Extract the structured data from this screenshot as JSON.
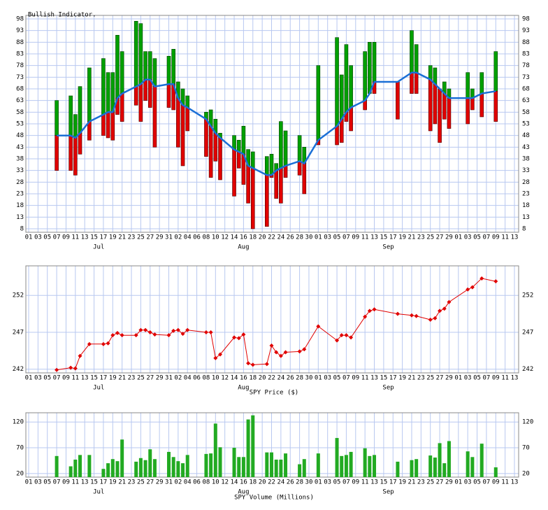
{
  "x_axis": {
    "ticks": [
      {
        "value": "Jul 01",
        "label": "01"
      },
      {
        "value": "Jul 03",
        "label": "03"
      },
      {
        "value": "Jul 05",
        "label": "05"
      },
      {
        "value": "Jul 07",
        "label": "07"
      },
      {
        "value": "Jul 09",
        "label": "09"
      },
      {
        "value": "Jul 11",
        "label": "11"
      },
      {
        "value": "Jul 13",
        "label": "13"
      },
      {
        "value": "Jul 15",
        "label": "15"
      },
      {
        "value": "Jul 17",
        "label": "17"
      },
      {
        "value": "Jul 19",
        "label": "19"
      },
      {
        "value": "Jul 21",
        "label": "21"
      },
      {
        "value": "Jul 23",
        "label": "23"
      },
      {
        "value": "Jul 25",
        "label": "25"
      },
      {
        "value": "Jul 27",
        "label": "27"
      },
      {
        "value": "Jul 29",
        "label": "29"
      },
      {
        "value": "Jul 31",
        "label": "31"
      },
      {
        "value": "Aug 02",
        "label": "02"
      },
      {
        "value": "Aug 04",
        "label": "04"
      },
      {
        "value": "Aug 06",
        "label": "06"
      },
      {
        "value": "Aug 08",
        "label": "08"
      },
      {
        "value": "Aug 10",
        "label": "10"
      },
      {
        "value": "Aug 12",
        "label": "12"
      },
      {
        "value": "Aug 14",
        "label": "14"
      },
      {
        "value": "Aug 16",
        "label": "16"
      },
      {
        "value": "Aug 18",
        "label": "18"
      },
      {
        "value": "Aug 20",
        "label": "20"
      },
      {
        "value": "Aug 22",
        "label": "22"
      },
      {
        "value": "Aug 24",
        "label": "24"
      },
      {
        "value": "Aug 26",
        "label": "26"
      },
      {
        "value": "Aug 28",
        "label": "28"
      },
      {
        "value": "Aug 30",
        "label": "30"
      },
      {
        "value": "Sep 01",
        "label": "01"
      },
      {
        "value": "Sep 03",
        "label": "03"
      },
      {
        "value": "Sep 05",
        "label": "05"
      },
      {
        "value": "Sep 07",
        "label": "07"
      },
      {
        "value": "Sep 09",
        "label": "09"
      },
      {
        "value": "Sep 11",
        "label": "11"
      },
      {
        "value": "Sep 13",
        "label": "13"
      },
      {
        "value": "Sep 15",
        "label": "15"
      },
      {
        "value": "Sep 17",
        "label": "17"
      },
      {
        "value": "Sep 19",
        "label": "19"
      },
      {
        "value": "Sep 21",
        "label": "21"
      },
      {
        "value": "Sep 23",
        "label": "23"
      },
      {
        "value": "Sep 25",
        "label": "25"
      },
      {
        "value": "Sep 27",
        "label": "27"
      },
      {
        "value": "Sep 29",
        "label": "29"
      },
      {
        "value": "Oct 01",
        "label": "01"
      },
      {
        "value": "Oct 03",
        "label": "03"
      },
      {
        "value": "Oct 05",
        "label": "05"
      },
      {
        "value": "Oct 07",
        "label": "07"
      },
      {
        "value": "Oct 09",
        "label": "09"
      },
      {
        "value": "Oct 11",
        "label": "11"
      },
      {
        "value": "Oct 13",
        "label": "13"
      }
    ],
    "months": [
      "Jul",
      "Aug",
      "Sep"
    ]
  },
  "chart_data": [
    {
      "type": "indicator",
      "title": "Bullish Indicator.",
      "x": [
        "Jul 07",
        "Jul 10",
        "Jul 11",
        "Jul 12",
        "Jul 14",
        "Jul 17",
        "Jul 18",
        "Jul 19",
        "Jul 20",
        "Jul 21",
        "Jul 24",
        "Jul 25",
        "Jul 26",
        "Jul 27",
        "Jul 28",
        "Jul 31",
        "Aug 01",
        "Aug 02",
        "Aug 03",
        "Aug 04",
        "Aug 08",
        "Aug 09",
        "Aug 10",
        "Aug 11",
        "Aug 14",
        "Aug 15",
        "Aug 16",
        "Aug 17",
        "Aug 18",
        "Aug 21",
        "Aug 22",
        "Aug 23",
        "Aug 24",
        "Aug 25",
        "Aug 28",
        "Aug 29",
        "Sep 01",
        "Sep 05",
        "Sep 06",
        "Sep 07",
        "Sep 08",
        "Sep 11",
        "Sep 12",
        "Sep 13",
        "Sep 18",
        "Sep 21",
        "Sep 22",
        "Sep 25",
        "Sep 26",
        "Sep 27",
        "Sep 28",
        "Sep 29",
        "Oct 03",
        "Oct 04",
        "Oct 06",
        "Oct 09"
      ],
      "high": [
        63,
        65,
        57,
        69,
        77,
        81,
        75,
        75,
        91,
        84,
        97,
        96,
        84,
        84,
        81,
        82,
        85,
        71,
        68,
        65,
        58,
        59,
        55,
        49,
        48,
        46,
        52,
        42,
        41,
        39,
        40,
        36,
        54,
        50,
        48,
        43,
        78,
        90,
        74,
        87,
        78,
        84,
        88,
        88,
        71,
        93,
        87,
        78,
        77,
        68,
        71,
        68,
        75,
        68,
        75,
        84
      ],
      "low": [
        33,
        33,
        31,
        40,
        46,
        48,
        47,
        46,
        57,
        54,
        61,
        54,
        63,
        60,
        43,
        60,
        59,
        43,
        35,
        50,
        39,
        30,
        37,
        29,
        22,
        34,
        27,
        19,
        8,
        9,
        30,
        21,
        19,
        30,
        31,
        23,
        44,
        44,
        45,
        54,
        50,
        59,
        66,
        66,
        55,
        66,
        66,
        50,
        53,
        45,
        55,
        51,
        53,
        59,
        56,
        54
      ],
      "line": [
        48,
        48,
        47,
        49,
        54,
        57,
        58,
        58,
        64,
        66,
        69,
        70,
        72,
        72,
        69,
        70,
        70,
        64,
        61,
        60,
        55,
        52,
        49,
        47,
        42,
        41,
        40,
        35,
        34,
        31,
        31,
        33,
        34,
        35,
        37,
        36,
        46,
        52,
        55,
        58,
        60,
        63,
        66,
        71,
        71,
        75,
        75,
        72,
        70,
        68,
        66,
        64,
        64,
        64,
        66,
        67
      ],
      "up_color": "#00a000",
      "down_color": "#e00000",
      "line_color": "#1a6fd6",
      "ylim": [
        6.5,
        99.5
      ],
      "yticks": [
        8,
        13,
        18,
        23,
        28,
        33,
        38,
        43,
        48,
        53,
        58,
        63,
        68,
        73,
        78,
        83,
        88,
        93,
        98
      ],
      "grid": true
    },
    {
      "type": "line",
      "title": "SPY Price ($)",
      "x": [
        "Jul 07",
        "Jul 10",
        "Jul 11",
        "Jul 12",
        "Jul 14",
        "Jul 17",
        "Jul 18",
        "Jul 19",
        "Jul 20",
        "Jul 21",
        "Jul 24",
        "Jul 25",
        "Jul 26",
        "Jul 27",
        "Jul 28",
        "Jul 31",
        "Aug 01",
        "Aug 02",
        "Aug 03",
        "Aug 04",
        "Aug 08",
        "Aug 09",
        "Aug 10",
        "Aug 11",
        "Aug 14",
        "Aug 15",
        "Aug 16",
        "Aug 17",
        "Aug 18",
        "Aug 21",
        "Aug 22",
        "Aug 23",
        "Aug 24",
        "Aug 25",
        "Aug 28",
        "Aug 29",
        "Sep 01",
        "Sep 05",
        "Sep 06",
        "Sep 07",
        "Sep 08",
        "Sep 11",
        "Sep 12",
        "Sep 13",
        "Sep 18",
        "Sep 21",
        "Sep 22",
        "Sep 25",
        "Sep 26",
        "Sep 27",
        "Sep 28",
        "Sep 29",
        "Oct 03",
        "Oct 04",
        "Oct 06",
        "Oct 09"
      ],
      "values": [
        241.9,
        242.2,
        242.1,
        243.8,
        245.4,
        245.4,
        245.5,
        246.6,
        246.9,
        246.6,
        246.6,
        247.3,
        247.3,
        247.0,
        246.7,
        246.6,
        247.2,
        247.3,
        246.8,
        247.3,
        247.0,
        247.0,
        243.5,
        244.0,
        246.3,
        246.2,
        246.7,
        242.8,
        242.6,
        242.7,
        245.2,
        244.3,
        243.8,
        244.3,
        244.4,
        244.7,
        247.8,
        245.9,
        246.6,
        246.6,
        246.3,
        249.1,
        249.9,
        250.1,
        249.5,
        249.3,
        249.2,
        248.7,
        248.9,
        249.9,
        250.2,
        251.1,
        252.8,
        253.1,
        254.3,
        253.9
      ],
      "color": "#e00000",
      "ylim": [
        241.5,
        256
      ],
      "yticks": [
        242,
        247,
        252
      ],
      "grid": true
    },
    {
      "type": "bar",
      "title": "SPY Volume (Millions)",
      "x": [
        "Jul 07",
        "Jul 10",
        "Jul 11",
        "Jul 12",
        "Jul 14",
        "Jul 17",
        "Jul 18",
        "Jul 19",
        "Jul 20",
        "Jul 21",
        "Jul 24",
        "Jul 25",
        "Jul 26",
        "Jul 27",
        "Jul 28",
        "Jul 31",
        "Aug 01",
        "Aug 02",
        "Aug 03",
        "Aug 04",
        "Aug 08",
        "Aug 09",
        "Aug 10",
        "Aug 11",
        "Aug 14",
        "Aug 15",
        "Aug 16",
        "Aug 17",
        "Aug 18",
        "Aug 21",
        "Aug 22",
        "Aug 23",
        "Aug 24",
        "Aug 25",
        "Aug 28",
        "Aug 29",
        "Sep 01",
        "Sep 05",
        "Sep 06",
        "Sep 07",
        "Sep 08",
        "Sep 11",
        "Sep 12",
        "Sep 13",
        "Sep 18",
        "Sep 21",
        "Sep 22",
        "Sep 25",
        "Sep 26",
        "Sep 27",
        "Sep 28",
        "Sep 29",
        "Oct 03",
        "Oct 04",
        "Oct 06",
        "Oct 09"
      ],
      "values": [
        54,
        34,
        47,
        56,
        56,
        29,
        40,
        48,
        44,
        86,
        43,
        50,
        46,
        67,
        48,
        62,
        52,
        44,
        40,
        56,
        58,
        59,
        117,
        71,
        70,
        52,
        52,
        125,
        133,
        61,
        61,
        47,
        47,
        59,
        38,
        48,
        59,
        89,
        54,
        56,
        62,
        69,
        54,
        56,
        43,
        46,
        48,
        55,
        51,
        79,
        40,
        83,
        63,
        52,
        78,
        32
      ],
      "color": "#22aa22",
      "ylim": [
        13,
        138
      ],
      "yticks": [
        20,
        70,
        120
      ],
      "grid": true
    }
  ]
}
